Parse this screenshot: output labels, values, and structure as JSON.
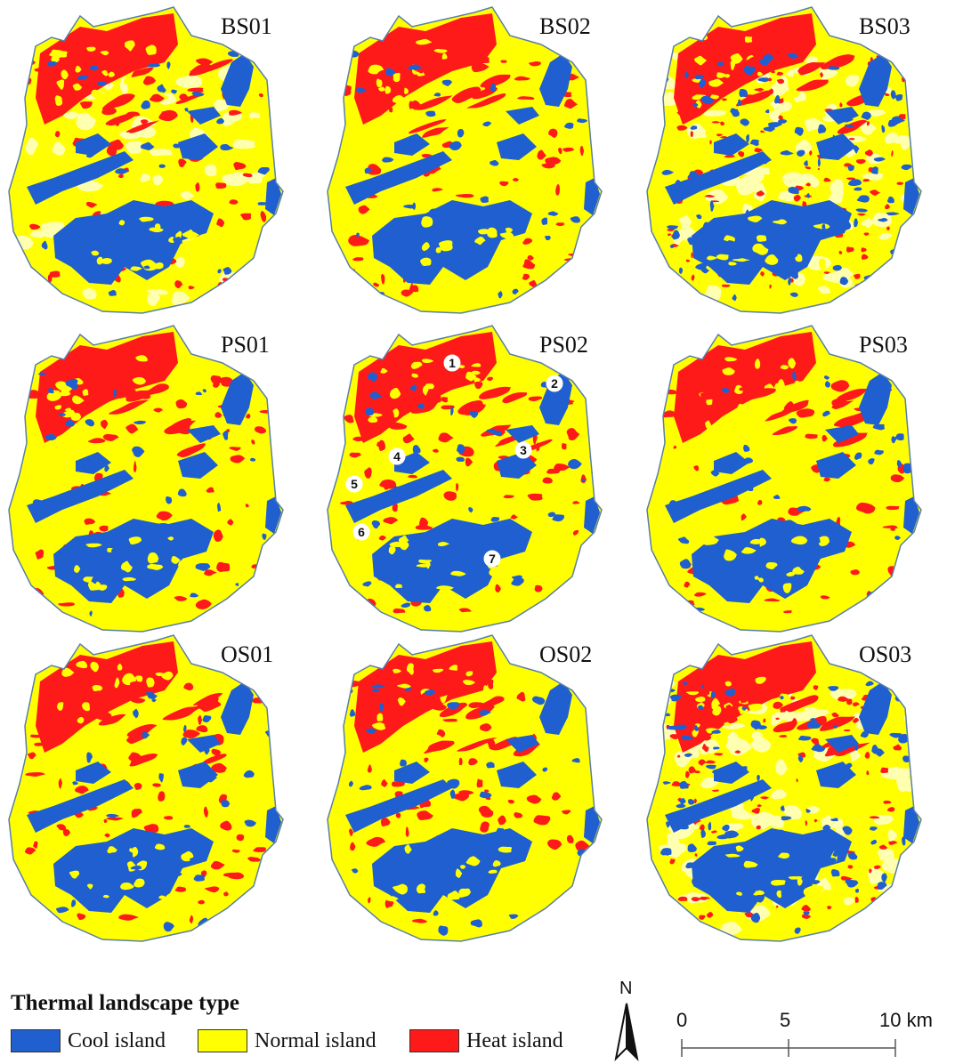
{
  "panels": [
    {
      "id": "BS01",
      "label": "BS01",
      "variant": 0
    },
    {
      "id": "BS02",
      "label": "BS02",
      "variant": 1
    },
    {
      "id": "BS03",
      "label": "BS03",
      "variant": 2
    },
    {
      "id": "PS01",
      "label": "PS01",
      "variant": 1
    },
    {
      "id": "PS02",
      "label": "PS02",
      "variant": 1,
      "markers": [
        "1",
        "2",
        "3",
        "4",
        "5",
        "6",
        "7"
      ]
    },
    {
      "id": "PS03",
      "label": "PS03",
      "variant": 1
    },
    {
      "id": "OS01",
      "label": "OS01",
      "variant": 1
    },
    {
      "id": "OS02",
      "label": "OS02",
      "variant": 1
    },
    {
      "id": "OS03",
      "label": "OS03",
      "variant": 2
    }
  ],
  "legend": {
    "title": "Thermal landscape type",
    "items": [
      {
        "label": "Cool island",
        "color": "#1f5fd0"
      },
      {
        "label": "Normal island",
        "color": "#ffff00"
      },
      {
        "label": "Heat island",
        "color": "#ff1a1a"
      }
    ]
  },
  "north_arrow": {
    "label": "N"
  },
  "scale_bar": {
    "ticks": [
      "0",
      "5",
      "10 km"
    ]
  },
  "colors": {
    "outline": "#5a7fa8",
    "cool": "#1f5fd0",
    "normal": "#ffff00",
    "heat": "#ff1a1a",
    "pale": "#ffffb0"
  }
}
